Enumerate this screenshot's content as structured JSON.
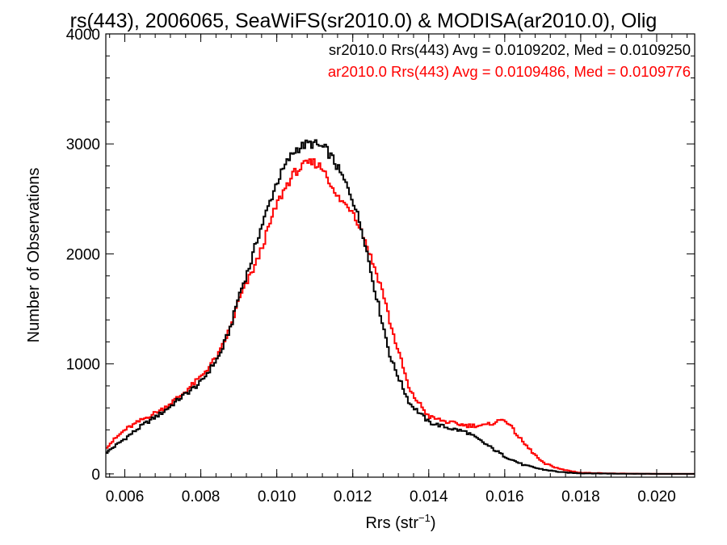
{
  "chart_data": {
    "type": "line",
    "title": "rs(443), 2006065, SeaWiFS(sr2010.0) & MODISA(ar2010.0), Olig",
    "xlabel_main": "Rrs (str",
    "xlabel_sup": "−1",
    "xlabel_close": ")",
    "ylabel": "Number of Observations",
    "xlim": [
      0.0055,
      0.021
    ],
    "ylim": [
      -30,
      4000
    ],
    "xticks": [
      {
        "v": 0.006,
        "label": "0.006"
      },
      {
        "v": 0.008,
        "label": "0.008"
      },
      {
        "v": 0.01,
        "label": "0.010"
      },
      {
        "v": 0.012,
        "label": "0.012"
      },
      {
        "v": 0.014,
        "label": "0.014"
      },
      {
        "v": 0.016,
        "label": "0.016"
      },
      {
        "v": 0.018,
        "label": "0.018"
      },
      {
        "v": 0.02,
        "label": "0.020"
      }
    ],
    "yticks": [
      {
        "v": 0,
        "label": "0"
      },
      {
        "v": 1000,
        "label": "1000"
      },
      {
        "v": 2000,
        "label": "2000"
      },
      {
        "v": 3000,
        "label": "3000"
      },
      {
        "v": 4000,
        "label": "4000"
      }
    ],
    "annotations": [
      {
        "text": "sr2010.0 Rrs(443) Avg = 0.0109202, Med = 0.0109250",
        "color": "#000000"
      },
      {
        "text": "ar2010.0 Rrs(443) Avg = 0.0109486, Med = 0.0109776",
        "color": "#ff0000"
      }
    ],
    "series": [
      {
        "color": "#000000",
        "x": [
          0.0055,
          0.006,
          0.0065,
          0.007,
          0.0075,
          0.008,
          0.0085,
          0.0088,
          0.009,
          0.0093,
          0.0095,
          0.0098,
          0.01,
          0.0103,
          0.0105,
          0.0108,
          0.011,
          0.0113,
          0.0115,
          0.0118,
          0.012,
          0.0123,
          0.0125,
          0.0128,
          0.013,
          0.0133,
          0.0135,
          0.0138,
          0.014,
          0.0145,
          0.015,
          0.0155,
          0.016,
          0.0165,
          0.017,
          0.0175,
          0.018,
          0.019,
          0.02,
          0.021
        ],
        "y": [
          190,
          320,
          450,
          560,
          700,
          830,
          1080,
          1350,
          1620,
          1900,
          2150,
          2450,
          2650,
          2850,
          2950,
          3000,
          3000,
          2950,
          2850,
          2650,
          2500,
          2150,
          1800,
          1350,
          1050,
          800,
          640,
          540,
          470,
          420,
          380,
          270,
          160,
          80,
          40,
          15,
          5,
          2,
          0,
          0
        ]
      },
      {
        "color": "#ff0000",
        "x": [
          0.0055,
          0.006,
          0.0065,
          0.007,
          0.0075,
          0.008,
          0.0085,
          0.0088,
          0.009,
          0.0093,
          0.0095,
          0.0098,
          0.01,
          0.0103,
          0.0105,
          0.0108,
          0.011,
          0.0113,
          0.0115,
          0.0118,
          0.012,
          0.0123,
          0.0125,
          0.0128,
          0.013,
          0.0133,
          0.0135,
          0.0138,
          0.014,
          0.0145,
          0.015,
          0.0155,
          0.016,
          0.0165,
          0.017,
          0.0175,
          0.018,
          0.019,
          0.02,
          0.021
        ],
        "y": [
          240,
          400,
          500,
          590,
          720,
          880,
          1100,
          1350,
          1580,
          1800,
          1950,
          2250,
          2450,
          2650,
          2750,
          2820,
          2830,
          2750,
          2550,
          2450,
          2400,
          2150,
          1950,
          1650,
          1350,
          1000,
          750,
          620,
          520,
          470,
          440,
          440,
          500,
          280,
          100,
          40,
          10,
          3,
          0,
          0
        ]
      }
    ]
  }
}
